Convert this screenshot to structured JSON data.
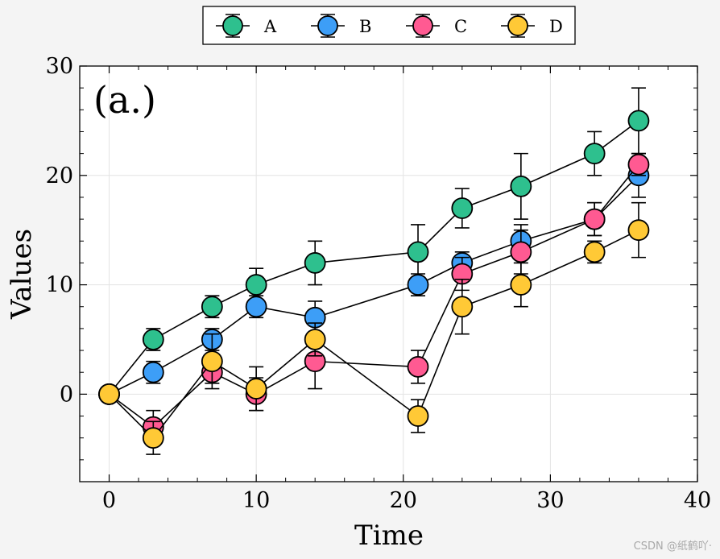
{
  "chart_data": {
    "type": "line",
    "panel_label": "(a.)",
    "xlabel": "Time",
    "ylabel": "Values",
    "xlim": [
      -2,
      40
    ],
    "ylim": [
      -8,
      30
    ],
    "xticks": [
      0,
      10,
      20,
      30,
      40
    ],
    "yticks": [
      0,
      10,
      20,
      30
    ],
    "x_minor_step": 2,
    "y_minor_step": 2,
    "grid": true,
    "legend_position": "top-center (above plot)",
    "x": [
      0,
      3,
      7,
      10,
      14,
      21,
      24,
      28,
      33,
      36
    ],
    "series": [
      {
        "name": "A",
        "color": "#2ec08e",
        "values": [
          0,
          5,
          8,
          10,
          12,
          13,
          17,
          19,
          22,
          25
        ],
        "errors": [
          0,
          1.0,
          1.0,
          1.5,
          2.0,
          2.5,
          1.8,
          3.0,
          2.0,
          3.0
        ]
      },
      {
        "name": "B",
        "color": "#3d9ef7",
        "values": [
          0,
          2,
          5,
          8,
          7,
          10,
          12,
          14,
          16,
          20
        ],
        "errors": [
          0,
          1.0,
          1.0,
          1.0,
          1.5,
          1.0,
          1.0,
          1.5,
          1.5,
          2.0
        ]
      },
      {
        "name": "C",
        "color": "#ff5a92",
        "values": [
          0,
          -3,
          2,
          0,
          3,
          2.5,
          11,
          13,
          16,
          21
        ],
        "errors": [
          0,
          1.5,
          1.0,
          1.5,
          2.5,
          1.5,
          1.5,
          2.0,
          1.5,
          1.0
        ]
      },
      {
        "name": "D",
        "color": "#ffc936",
        "values": [
          0,
          -4,
          3,
          0.5,
          5,
          -2,
          8,
          10,
          13,
          15
        ],
        "errors": [
          0,
          1.5,
          2.5,
          2.0,
          1.5,
          1.5,
          2.5,
          2.0,
          1.0,
          2.5
        ]
      }
    ]
  },
  "watermark": "CSDN @纸鹤吖·"
}
